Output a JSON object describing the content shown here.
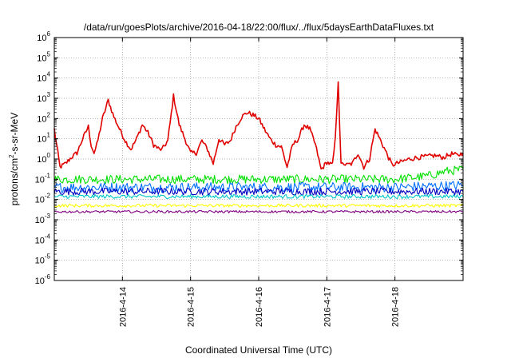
{
  "chart_data": {
    "type": "line",
    "title": "/data/run/goesPlots/archive/2016-04-18/22:00/flux/../flux/5daysEarthDataFluxes.txt",
    "xlabel": "Coordinated Universal Time (UTC)",
    "ylabel": {
      "prefix": "protons/cm",
      "sup": "2",
      "suffix": "-s-sr-MeV"
    },
    "yscale": "log",
    "ylim": [
      1e-06,
      1000000.0
    ],
    "xlim": [
      "2016-04-13T00:00",
      "2016-04-19T00:00"
    ],
    "grid": true,
    "y_ticks": [
      {
        "base": "10",
        "exp": "-6",
        "value": 1e-06
      },
      {
        "base": "10",
        "exp": "-5",
        "value": 1e-05
      },
      {
        "base": "10",
        "exp": "-4",
        "value": 0.0001
      },
      {
        "base": "10",
        "exp": "-3",
        "value": 0.001
      },
      {
        "base": "10",
        "exp": "-2",
        "value": 0.01
      },
      {
        "base": "10",
        "exp": "-1",
        "value": 0.1
      },
      {
        "base": "10",
        "exp": "0",
        "value": 1
      },
      {
        "base": "10",
        "exp": "1",
        "value": 10
      },
      {
        "base": "10",
        "exp": "2",
        "value": 100
      },
      {
        "base": "10",
        "exp": "3",
        "value": 1000
      },
      {
        "base": "10",
        "exp": "4",
        "value": 10000
      },
      {
        "base": "10",
        "exp": "5",
        "value": 100000
      },
      {
        "base": "10",
        "exp": "6",
        "value": 1000000
      }
    ],
    "x_ticks": [
      {
        "label": "2016-4-14",
        "value": "2016-04-14T00:00"
      },
      {
        "label": "2016-4-15",
        "value": "2016-04-15T00:00"
      },
      {
        "label": "2016-4-16",
        "value": "2016-04-16T00:00"
      },
      {
        "label": "2016-4-17",
        "value": "2016-04-17T00:00"
      },
      {
        "label": "2016-4-18",
        "value": "2016-04-18T00:00"
      }
    ],
    "series": [
      {
        "color": "#e00000",
        "x": [
          "2016-04-13T00:00",
          "2016-04-13T02:00",
          "2016-04-13T04:00",
          "2016-04-13T06:00",
          "2016-04-13T08:00",
          "2016-04-13T10:00",
          "2016-04-13T12:00",
          "2016-04-13T13:00",
          "2016-04-13T14:00",
          "2016-04-13T15:00",
          "2016-04-13T17:00",
          "2016-04-13T19:00",
          "2016-04-13T21:00",
          "2016-04-13T23:00",
          "2016-04-14T01:00",
          "2016-04-14T03:00",
          "2016-04-14T05:00",
          "2016-04-14T07:00",
          "2016-04-14T09:00",
          "2016-04-14T11:00",
          "2016-04-14T13:00",
          "2016-04-14T14:00",
          "2016-04-14T16:00",
          "2016-04-14T18:00",
          "2016-04-14T20:00",
          "2016-04-14T22:00",
          "2016-04-15T00:00",
          "2016-04-15T02:00",
          "2016-04-15T04:00",
          "2016-04-15T06:00",
          "2016-04-15T08:00",
          "2016-04-15T10:00",
          "2016-04-15T12:00",
          "2016-04-15T14:00",
          "2016-04-15T16:00",
          "2016-04-15T18:00",
          "2016-04-15T20:00",
          "2016-04-15T22:00",
          "2016-04-16T00:00",
          "2016-04-16T02:00",
          "2016-04-16T04:00",
          "2016-04-16T06:00",
          "2016-04-16T08:00",
          "2016-04-16T10:00",
          "2016-04-16T12:00",
          "2016-04-16T14:00",
          "2016-04-16T16:00",
          "2016-04-16T18:00",
          "2016-04-16T20:00",
          "2016-04-16T22:00",
          "2016-04-17T00:00",
          "2016-04-17T02:00",
          "2016-04-17T03:00",
          "2016-04-17T04:00",
          "2016-04-17T05:00",
          "2016-04-17T06:00",
          "2016-04-17T07:00",
          "2016-04-17T09:00",
          "2016-04-17T11:00",
          "2016-04-17T13:00",
          "2016-04-17T15:00",
          "2016-04-17T17:00",
          "2016-04-17T19:00",
          "2016-04-17T21:00",
          "2016-04-17T23:00",
          "2016-04-18T02:00",
          "2016-04-18T05:00",
          "2016-04-18T08:00",
          "2016-04-18T11:00",
          "2016-04-18T14:00",
          "2016-04-18T17:00",
          "2016-04-18T20:00",
          "2016-04-18T22:00",
          "2016-04-19T00:00"
        ],
        "values": [
          30,
          0.4,
          0.6,
          1.2,
          2,
          10,
          40,
          5,
          2,
          5,
          100,
          800,
          120,
          30,
          8,
          3,
          10,
          50,
          20,
          5,
          3,
          3,
          8,
          1300,
          50,
          10,
          2,
          2,
          8,
          3,
          0.6,
          10,
          5,
          8,
          40,
          120,
          200,
          150,
          100,
          30,
          10,
          5,
          4,
          0.4,
          5,
          10,
          50,
          30,
          5,
          0.3,
          0.7,
          0.5,
          10,
          8000,
          0.5,
          0.6,
          0.5,
          0.6,
          2,
          0.4,
          1,
          30,
          8,
          2,
          0.5,
          0.7,
          1,
          1.2,
          1.3,
          1.5,
          1.2,
          1.8,
          1.5,
          2
        ]
      },
      {
        "color": "#00e000",
        "x": [
          "2016-04-13T00:00",
          "2016-04-14T00:00",
          "2016-04-15T00:00",
          "2016-04-16T00:00",
          "2016-04-17T00:00",
          "2016-04-18T00:00",
          "2016-04-18T06:00",
          "2016-04-18T12:00",
          "2016-04-18T18:00",
          "2016-04-19T00:00"
        ],
        "values": [
          0.1,
          0.1,
          0.1,
          0.1,
          0.1,
          0.1,
          0.12,
          0.15,
          0.25,
          0.3
        ]
      },
      {
        "color": "#0070ff",
        "x": [
          "2016-04-13T00:00",
          "2016-04-14T00:00",
          "2016-04-15T00:00",
          "2016-04-16T00:00",
          "2016-04-17T00:00",
          "2016-04-18T00:00",
          "2016-04-18T12:00",
          "2016-04-19T00:00"
        ],
        "values": [
          0.04,
          0.04,
          0.04,
          0.04,
          0.04,
          0.04,
          0.045,
          0.05
        ]
      },
      {
        "color": "#0000c0",
        "x": [
          "2016-04-13T00:00",
          "2016-04-15T00:00",
          "2016-04-17T00:00",
          "2016-04-19T00:00"
        ],
        "values": [
          0.025,
          0.025,
          0.025,
          0.025
        ]
      },
      {
        "color": "#00c8c8",
        "x": [
          "2016-04-13T00:00",
          "2016-04-15T00:00",
          "2016-04-17T00:00",
          "2016-04-19T00:00"
        ],
        "values": [
          0.014,
          0.014,
          0.014,
          0.014
        ]
      },
      {
        "color": "#ffff00",
        "x": [
          "2016-04-13T00:00",
          "2016-04-15T00:00",
          "2016-04-17T00:00",
          "2016-04-19T00:00"
        ],
        "values": [
          0.005,
          0.005,
          0.005,
          0.005
        ]
      },
      {
        "color": "#800080",
        "x": [
          "2016-04-13T00:00",
          "2016-04-15T00:00",
          "2016-04-17T00:00",
          "2016-04-19T00:00"
        ],
        "values": [
          0.0025,
          0.0025,
          0.0025,
          0.0025
        ]
      }
    ]
  }
}
